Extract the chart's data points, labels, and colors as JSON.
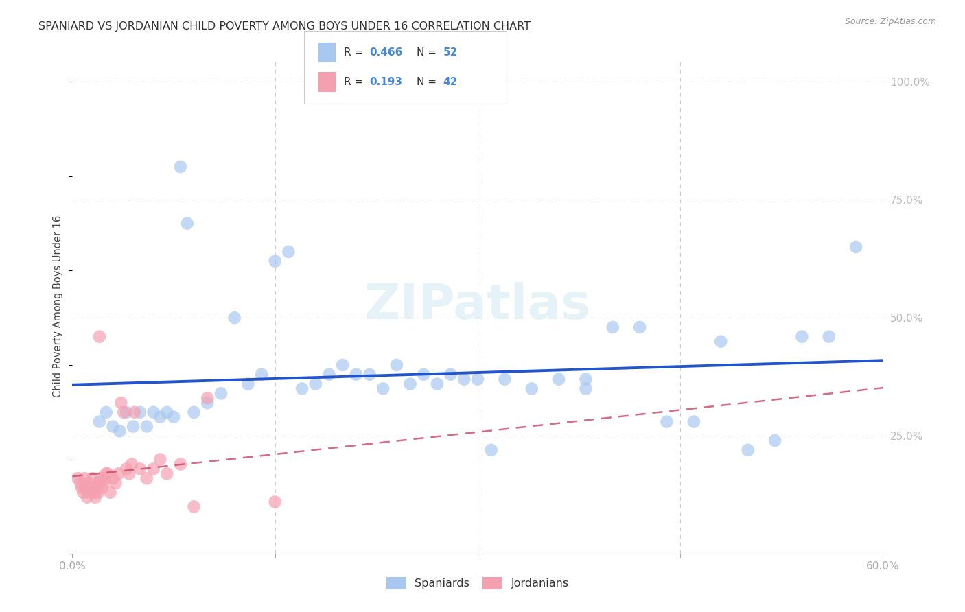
{
  "title": "SPANIARD VS JORDANIAN CHILD POVERTY AMONG BOYS UNDER 16 CORRELATION CHART",
  "source": "Source: ZipAtlas.com",
  "ylabel": "Child Poverty Among Boys Under 16",
  "xlim": [
    0.0,
    0.6
  ],
  "ylim": [
    0.0,
    1.05
  ],
  "yticks": [
    0.0,
    0.25,
    0.5,
    0.75,
    1.0
  ],
  "yticklabels": [
    "",
    "25.0%",
    "50.0%",
    "75.0%",
    "100.0%"
  ],
  "xticks": [
    0.0,
    0.15,
    0.3,
    0.45,
    0.6
  ],
  "xticklabels": [
    "0.0%",
    "",
    "",
    "",
    "60.0%"
  ],
  "background_color": "#ffffff",
  "grid_color": "#cccccc",
  "spaniards_color": "#a8c8f0",
  "jordanians_color": "#f5a0b0",
  "spaniards_line_color": "#2255cc",
  "jordanians_line_color": "#cc4466",
  "spaniards_R": 0.466,
  "spaniards_N": 52,
  "jordanians_R": 0.193,
  "jordanians_N": 42,
  "watermark": "ZIPatlas",
  "legend_text_color": "#4488dd",
  "tick_color": "#4488dd",
  "title_color": "#333333",
  "source_color": "#999999",
  "spaniards_x": [
    0.02,
    0.025,
    0.03,
    0.035,
    0.04,
    0.045,
    0.05,
    0.055,
    0.06,
    0.065,
    0.07,
    0.075,
    0.08,
    0.085,
    0.09,
    0.1,
    0.11,
    0.12,
    0.13,
    0.14,
    0.15,
    0.16,
    0.17,
    0.18,
    0.19,
    0.2,
    0.21,
    0.22,
    0.23,
    0.24,
    0.25,
    0.26,
    0.27,
    0.28,
    0.29,
    0.3,
    0.31,
    0.32,
    0.34,
    0.36,
    0.38,
    0.38,
    0.4,
    0.42,
    0.44,
    0.46,
    0.48,
    0.5,
    0.52,
    0.54,
    0.56,
    0.58
  ],
  "spaniards_y": [
    0.28,
    0.3,
    0.27,
    0.26,
    0.3,
    0.27,
    0.3,
    0.27,
    0.3,
    0.29,
    0.3,
    0.29,
    0.82,
    0.7,
    0.3,
    0.32,
    0.34,
    0.5,
    0.36,
    0.38,
    0.62,
    0.64,
    0.35,
    0.36,
    0.38,
    0.4,
    0.38,
    0.38,
    0.35,
    0.4,
    0.36,
    0.38,
    0.36,
    0.38,
    0.37,
    0.37,
    0.22,
    0.37,
    0.35,
    0.37,
    0.35,
    0.37,
    0.48,
    0.48,
    0.28,
    0.28,
    0.45,
    0.22,
    0.24,
    0.46,
    0.46,
    0.65
  ],
  "jordanians_x": [
    0.004,
    0.006,
    0.007,
    0.008,
    0.009,
    0.01,
    0.011,
    0.012,
    0.013,
    0.014,
    0.015,
    0.016,
    0.017,
    0.018,
    0.019,
    0.02,
    0.021,
    0.022,
    0.023,
    0.024,
    0.025,
    0.026,
    0.028,
    0.03,
    0.032,
    0.034,
    0.036,
    0.038,
    0.04,
    0.042,
    0.044,
    0.046,
    0.05,
    0.055,
    0.06,
    0.065,
    0.07,
    0.08,
    0.09,
    0.1,
    0.15,
    0.02
  ],
  "jordanians_y": [
    0.16,
    0.15,
    0.14,
    0.13,
    0.16,
    0.14,
    0.12,
    0.13,
    0.15,
    0.14,
    0.16,
    0.13,
    0.12,
    0.14,
    0.13,
    0.15,
    0.16,
    0.14,
    0.15,
    0.16,
    0.17,
    0.17,
    0.13,
    0.16,
    0.15,
    0.17,
    0.32,
    0.3,
    0.18,
    0.17,
    0.19,
    0.3,
    0.18,
    0.16,
    0.18,
    0.2,
    0.17,
    0.19,
    0.1,
    0.33,
    0.11,
    0.46
  ]
}
